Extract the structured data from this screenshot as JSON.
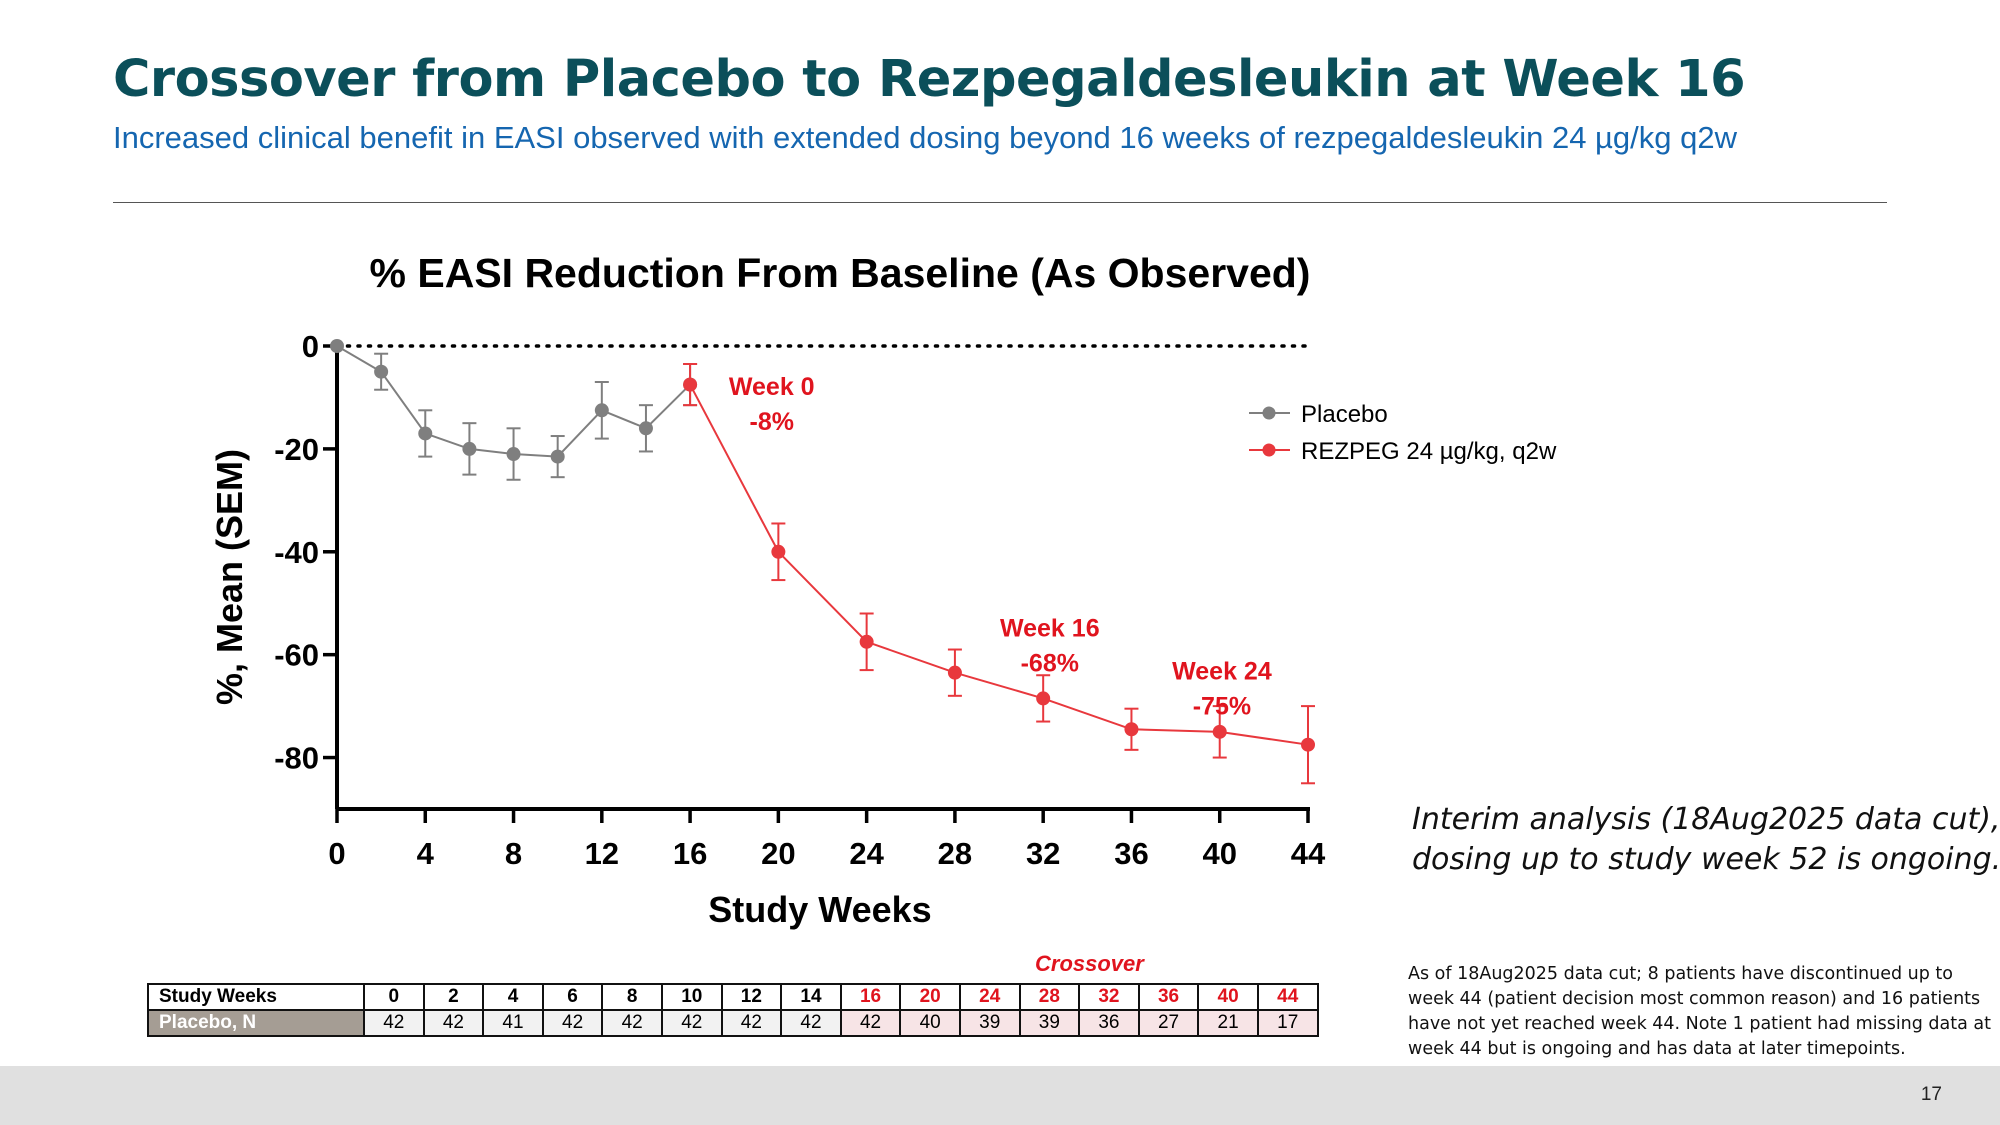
{
  "slide": {
    "title": "Crossover from Placebo to Rezpegaldesleukin at Week 16",
    "subtitle": "Increased clinical benefit in EASI observed with extended dosing beyond 16 weeks of rezpegaldesleukin  24 µg/kg q2w",
    "note_line1": "Interim analysis (18Aug2025 data cut),",
    "note_line2": "dosing up to study week 52 is ongoing.",
    "footnote": "As of 18Aug2025 data cut; 8 patients have discontinued up to week 44 (patient decision most common reason) and 16 patients have not yet reached week 44. Note 1 patient had missing data at week 44 but is ongoing and has data at later timepoints.",
    "page_number": "17"
  },
  "chart_data": {
    "type": "line",
    "title": "% EASI Reduction From Baseline (As Observed)",
    "xlabel": "Study Weeks",
    "ylabel": "%, Mean (SEM)",
    "xlim": [
      0,
      44
    ],
    "ylim": [
      -90,
      0
    ],
    "x_ticks": [
      0,
      4,
      8,
      12,
      16,
      20,
      24,
      28,
      32,
      36,
      40,
      44
    ],
    "y_ticks": [
      0,
      -20,
      -40,
      -60,
      -80
    ],
    "reference_line": 0,
    "legend_position": "top-right",
    "series": [
      {
        "name": "Placebo",
        "color": "#7f7f7f",
        "x": [
          0,
          2,
          4,
          6,
          8,
          10,
          12,
          14,
          16
        ],
        "y": [
          0,
          -5,
          -17,
          -20,
          -21,
          -21.5,
          -12.5,
          -16,
          -7.5
        ],
        "sem": [
          0,
          3.5,
          4.5,
          5,
          5,
          4,
          5.5,
          4.5,
          4
        ]
      },
      {
        "name": "REZPEG 24 µg/kg, q2w",
        "color": "#e8383d",
        "x": [
          16,
          20,
          24,
          28,
          32,
          36,
          40,
          44
        ],
        "y": [
          -7.5,
          -40,
          -57.5,
          -63.5,
          -68.5,
          -74.5,
          -75,
          -77.5
        ],
        "sem": [
          4,
          5.5,
          5.5,
          4.5,
          4.5,
          4,
          5,
          7.5
        ]
      }
    ],
    "annotations": [
      {
        "line1": "Week 0",
        "line2": "-8%",
        "week": 19.7,
        "value": -9.5
      },
      {
        "line1": "Week 16",
        "line2": "-68%",
        "week": 32.3,
        "value": -56.5
      },
      {
        "line1": "Week 24",
        "line2": "-75%",
        "week": 40.1,
        "value": -64.8
      }
    ]
  },
  "n_table": {
    "header_label": "Study Weeks",
    "row_label": "Placebo, N",
    "crossover_label": "Crossover",
    "weeks": [
      "0",
      "2",
      "4",
      "6",
      "8",
      "10",
      "12",
      "14",
      "16",
      "20",
      "24",
      "28",
      "32",
      "36",
      "40",
      "44"
    ],
    "counts": [
      "42",
      "42",
      "41",
      "42",
      "42",
      "42",
      "42",
      "42",
      "42",
      "40",
      "39",
      "39",
      "36",
      "27",
      "21",
      "17"
    ],
    "crossover_start_index": 8,
    "accent_color": "#e0141e"
  }
}
